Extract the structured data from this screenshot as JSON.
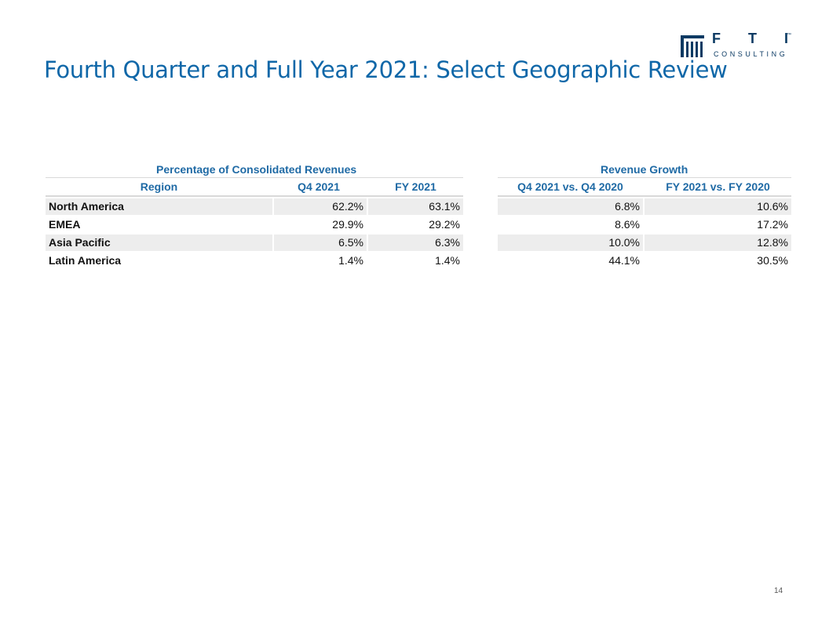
{
  "slide": {
    "title": "Fourth Quarter and Full Year 2021: Select Geographic Review",
    "page_number": "14"
  },
  "logo": {
    "letters": "FTI",
    "subtitle": "CONSULTING",
    "tm": "™",
    "icon": "column-building-icon"
  },
  "revenue_share_table": {
    "group_header": "Percentage of Consolidated Revenues",
    "columns": [
      "Region",
      "Q4 2021",
      "FY 2021"
    ],
    "rows": [
      {
        "region": "North America",
        "q4": "62.2%",
        "fy": "63.1%"
      },
      {
        "region": "EMEA",
        "q4": "29.9%",
        "fy": "29.2%"
      },
      {
        "region": "Asia Pacific",
        "q4": "6.5%",
        "fy": "6.3%"
      },
      {
        "region": "Latin America",
        "q4": "1.4%",
        "fy": "1.4%"
      }
    ]
  },
  "growth_table": {
    "group_header": "Revenue Growth",
    "columns": [
      "Q4 2021 vs. Q4 2020",
      "FY 2021 vs. FY 2020"
    ],
    "rows": [
      {
        "q4_growth": "6.8%",
        "fy_growth": "10.6%"
      },
      {
        "q4_growth": "8.6%",
        "fy_growth": "17.2%"
      },
      {
        "q4_growth": "10.0%",
        "fy_growth": "12.8%"
      },
      {
        "q4_growth": "44.1%",
        "fy_growth": "30.5%"
      }
    ]
  },
  "colors": {
    "title": "#0f67a8",
    "header": "#1f6aa5",
    "logo": "#0b3a63",
    "row_shade": "#ededed"
  }
}
